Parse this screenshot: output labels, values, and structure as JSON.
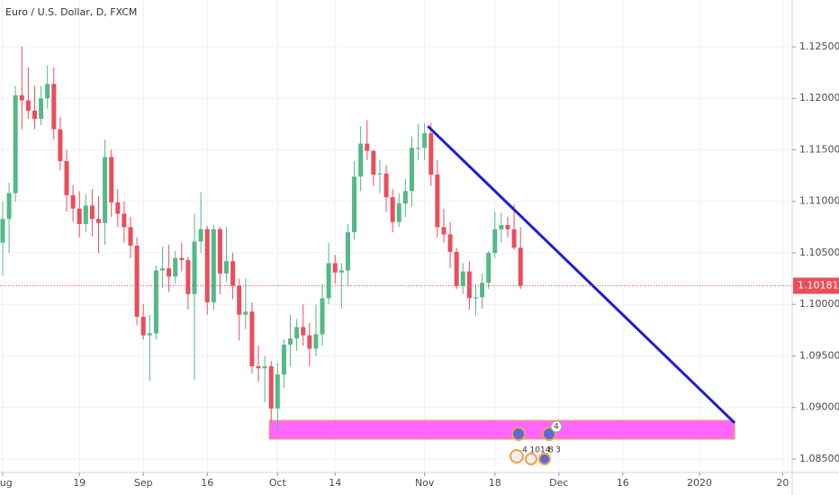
{
  "chart_data": {
    "type": "candlestick",
    "title": "Euro / U.S. Dollar, D, FXCM",
    "x": [
      0,
      1,
      2,
      3,
      4,
      5,
      6,
      7,
      8,
      9,
      10,
      11,
      12,
      13,
      14,
      15,
      16,
      17,
      18,
      19,
      20,
      21,
      22,
      23,
      24,
      25,
      26,
      27,
      28,
      29,
      30,
      31,
      32,
      33,
      34,
      35,
      36,
      37,
      38,
      39,
      40,
      41,
      42,
      43,
      44,
      45,
      46,
      47,
      48,
      49,
      50,
      51,
      52,
      53,
      54,
      55,
      56,
      57,
      58,
      59,
      60,
      61,
      62,
      63,
      64,
      65,
      66,
      67,
      68,
      69,
      70,
      71,
      72,
      73,
      74,
      75,
      76,
      77,
      78,
      79,
      80,
      81
    ],
    "open": [
      1.106,
      1.1083,
      1.1108,
      1.1203,
      1.1198,
      1.1188,
      1.118,
      1.12,
      1.1214,
      1.117,
      1.1139,
      1.1106,
      1.1093,
      1.1078,
      1.1096,
      1.1083,
      1.1079,
      1.1143,
      1.1099,
      1.1088,
      1.1075,
      1.1057,
      1.0988,
      1.097,
      1.0972,
      1.1033,
      1.1035,
      1.1027,
      1.1045,
      1.1043,
      1.101,
      1.1061,
      1.1073,
      1.1002,
      1.1073,
      1.103,
      1.1042,
      1.1018,
      1.099,
      1.0993,
      1.094,
      1.0938,
      1.094,
      1.0899,
      1.0932,
      1.0961,
      1.0967,
      1.0978,
      1.097,
      1.0957,
      1.0971,
      1.1006,
      1.104,
      1.1031,
      1.1033,
      1.107,
      1.1124,
      1.1156,
      1.1149,
      1.1126,
      1.1127,
      1.1104,
      1.108,
      1.1098,
      1.111,
      1.1152,
      1.1152,
      1.1166,
      1.1126,
      1.1075,
      1.1068,
      1.1051,
      1.1018,
      1.1032,
      1.1006,
      1.1007,
      1.1021,
      1.105,
      1.1073,
      1.1077,
      1.1073,
      1.1055
    ],
    "high": [
      1.11,
      1.1118,
      1.1212,
      1.125,
      1.123,
      1.1212,
      1.1212,
      1.1232,
      1.123,
      1.1182,
      1.115,
      1.1116,
      1.111,
      1.1107,
      1.1112,
      1.1105,
      1.116,
      1.115,
      1.1112,
      1.11,
      1.1085,
      1.1065,
      1.1,
      1.099,
      1.1038,
      1.1056,
      1.1058,
      1.1052,
      1.106,
      1.1046,
      1.1088,
      1.1109,
      1.1076,
      1.1077,
      1.1075,
      1.1075,
      1.105,
      1.1025,
      1.1025,
      1.1002,
      1.096,
      1.095,
      1.0945,
      1.0943,
      1.0966,
      1.099,
      1.0986,
      1.1,
      1.0982,
      1.1,
      1.102,
      1.106,
      1.1048,
      1.104,
      1.1078,
      1.1139,
      1.1173,
      1.1179,
      1.115,
      1.114,
      1.1135,
      1.1112,
      1.1108,
      1.1122,
      1.1163,
      1.1175,
      1.1176,
      1.1176,
      1.114,
      1.1093,
      1.108,
      1.1055,
      1.104,
      1.1042,
      1.102,
      1.103,
      1.1052,
      1.109,
      1.1089,
      1.1085,
      1.1097,
      1.1075
    ],
    "low": [
      1.1028,
      1.105,
      1.11,
      1.117,
      1.118,
      1.117,
      1.1174,
      1.119,
      1.116,
      1.113,
      1.109,
      1.108,
      1.1065,
      1.107,
      1.1066,
      1.105,
      1.1058,
      1.1085,
      1.1075,
      1.106,
      1.1045,
      1.098,
      1.0966,
      1.0926,
      1.0966,
      1.1016,
      1.1012,
      1.102,
      1.1032,
      1.0995,
      1.0927,
      1.105,
      1.099,
      1.0995,
      1.101,
      1.1022,
      1.1005,
      1.0965,
      1.0976,
      1.0933,
      1.0925,
      1.0905,
      1.0886,
      1.0879,
      1.0919,
      1.094,
      1.0955,
      1.096,
      1.094,
      1.095,
      1.096,
      1.1,
      1.102,
      1.0996,
      1.1018,
      1.1063,
      1.111,
      1.114,
      1.1115,
      1.1108,
      1.109,
      1.107,
      1.1075,
      1.1085,
      1.1095,
      1.114,
      1.114,
      1.1115,
      1.1065,
      1.106,
      1.1035,
      1.1015,
      1.101,
      1.0995,
      1.0989,
      1.0996,
      1.1015,
      1.1045,
      1.106,
      1.1065,
      1.1053,
      1.1015
    ],
    "close": [
      1.1083,
      1.1108,
      1.1203,
      1.1198,
      1.1188,
      1.118,
      1.12,
      1.1214,
      1.117,
      1.1139,
      1.1106,
      1.1093,
      1.1078,
      1.1096,
      1.1083,
      1.1079,
      1.1143,
      1.1099,
      1.1088,
      1.1075,
      1.1057,
      1.0988,
      1.097,
      1.0972,
      1.1033,
      1.1035,
      1.1027,
      1.1045,
      1.1043,
      1.101,
      1.1061,
      1.1073,
      1.1002,
      1.1073,
      1.103,
      1.1042,
      1.1018,
      1.099,
      1.0993,
      1.094,
      1.0938,
      1.094,
      1.0899,
      1.0932,
      1.0961,
      1.0967,
      1.0978,
      1.097,
      1.0957,
      1.0971,
      1.1006,
      1.104,
      1.1031,
      1.1033,
      1.107,
      1.1124,
      1.1156,
      1.1149,
      1.1126,
      1.1127,
      1.1104,
      1.108,
      1.1098,
      1.111,
      1.1152,
      1.1152,
      1.1166,
      1.1126,
      1.1075,
      1.1068,
      1.1051,
      1.1018,
      1.1032,
      1.1006,
      1.1007,
      1.1021,
      1.105,
      1.1073,
      1.1077,
      1.1073,
      1.1055,
      1.1018
    ],
    "up_color": "#53b987",
    "down_color": "#eb4d5c",
    "xlim": [
      -0.42,
      123.5
    ],
    "ylim": [
      1.08369,
      1.12954
    ],
    "xticks": [
      {
        "value": 0,
        "label": "Aug"
      },
      {
        "value": 12,
        "label": "19"
      },
      {
        "value": 22,
        "label": "Sep"
      },
      {
        "value": 32,
        "label": "16"
      },
      {
        "value": 43,
        "label": "Oct"
      },
      {
        "value": 52,
        "label": "14"
      },
      {
        "value": 66,
        "label": "Nov"
      },
      {
        "value": 77,
        "label": "18"
      },
      {
        "value": 87,
        "label": "Dec"
      },
      {
        "value": 97,
        "label": "16"
      },
      {
        "value": 109,
        "label": "2020"
      },
      {
        "value": 122,
        "label": "20"
      }
    ],
    "yticks": [
      {
        "value": 1.085,
        "label": "1.08500"
      },
      {
        "value": 1.09,
        "label": "1.09000"
      },
      {
        "value": 1.095,
        "label": "1.09500"
      },
      {
        "value": 1.1,
        "label": "1.10000"
      },
      {
        "value": 1.105,
        "label": "1.10500"
      },
      {
        "value": 1.11,
        "label": "1.11000"
      },
      {
        "value": 1.115,
        "label": "1.11500"
      },
      {
        "value": 1.12,
        "label": "1.12000"
      },
      {
        "value": 1.125,
        "label": "1.12500"
      }
    ],
    "grid": true,
    "last_price": 1.10181,
    "last_price_color": "#eb4d5c",
    "trendline": {
      "x": [
        66.5,
        114.5
      ],
      "y": [
        1.1173,
        1.0885
      ],
      "color": "#1e1ed2"
    },
    "zone": {
      "x": [
        41.7,
        114.5
      ],
      "y": [
        1.08692,
        1.08875
      ],
      "color": "#ff66ff"
    },
    "events": [
      "4",
      "4",
      "1014",
      "8",
      "3"
    ]
  }
}
